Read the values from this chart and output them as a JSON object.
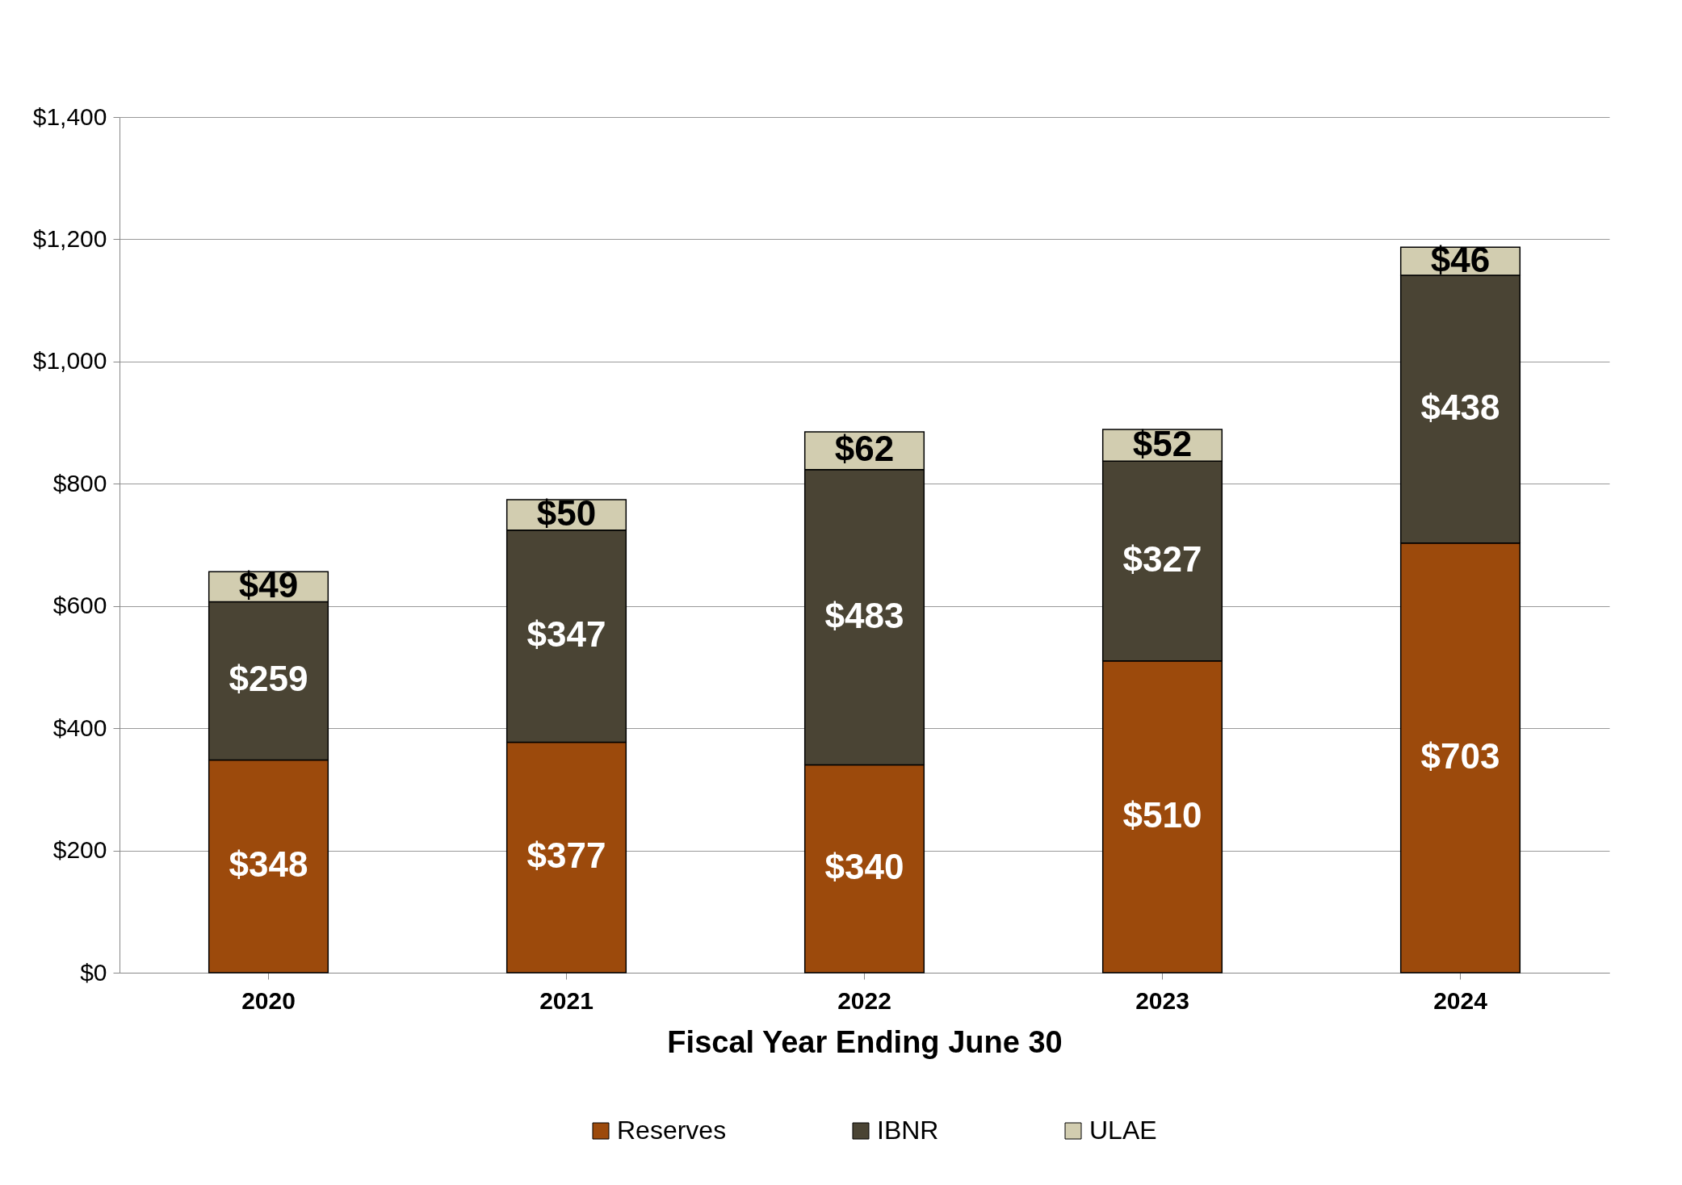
{
  "chart_data": {
    "type": "bar",
    "stacked": true,
    "xlabel": "Fiscal Year Ending June 30",
    "categories": [
      "2020",
      "2021",
      "2022",
      "2023",
      "2024"
    ],
    "series": [
      {
        "name": "Reserves",
        "color": "#9c4a0c",
        "values": [
          348,
          377,
          340,
          510,
          703
        ],
        "value_labels": [
          "$348",
          "$377",
          "$340",
          "$510",
          "$703"
        ]
      },
      {
        "name": "IBNR",
        "color": "#4a4434",
        "values": [
          259,
          347,
          483,
          327,
          438
        ],
        "value_labels": [
          "$259",
          "$347",
          "$483",
          "$327",
          "$438"
        ]
      },
      {
        "name": "ULAE",
        "color": "#d2cdb0",
        "values": [
          49,
          50,
          62,
          52,
          46
        ],
        "value_labels": [
          "$49",
          "$50",
          "$62",
          "$52",
          "$46"
        ]
      }
    ],
    "ylim": [
      0,
      1400
    ],
    "yticks": [
      {
        "value": 0,
        "label": "$0"
      },
      {
        "value": 200,
        "label": "$200"
      },
      {
        "value": 400,
        "label": "$400"
      },
      {
        "value": 600,
        "label": "$600"
      },
      {
        "value": 800,
        "label": "$800"
      },
      {
        "value": 1000,
        "label": "$1,000"
      },
      {
        "value": 1200,
        "label": "$1,200"
      },
      {
        "value": 1400,
        "label": "$1,400"
      }
    ],
    "grid": "y",
    "legend": "bottom"
  }
}
